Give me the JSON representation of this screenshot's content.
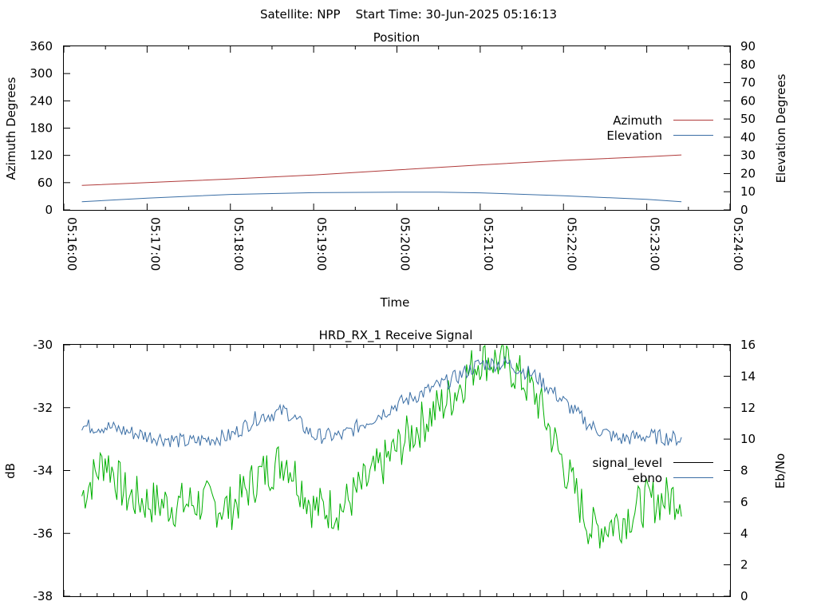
{
  "header": {
    "title": "Satellite: NPP    Start Time: 30-Jun-2025 05:16:13"
  },
  "chart_data": [
    {
      "type": "line",
      "title": "Position",
      "xlabel": "Time",
      "ylabel": "Azimuth Degrees",
      "y2label": "Elevation Degrees",
      "xlim": [
        "05:16:00",
        "05:24:00"
      ],
      "x_ticks": [
        "05:16:00",
        "05:17:00",
        "05:18:00",
        "05:19:00",
        "05:20:00",
        "05:21:00",
        "05:22:00",
        "05:23:00",
        "05:24:00"
      ],
      "ylim": [
        0,
        360
      ],
      "y_ticks": [
        "0",
        "60",
        "120",
        "180",
        "240",
        "300",
        "360"
      ],
      "y2lim": [
        0,
        90
      ],
      "y2_ticks": [
        "0",
        "10",
        "20",
        "30",
        "40",
        "50",
        "60",
        "70",
        "80",
        "90"
      ],
      "legend_position": "right",
      "colors": {
        "azimuth": "#b03a3a",
        "elevation": "#3a6ea5"
      },
      "series": [
        {
          "name": "Azimuth",
          "axis": "left",
          "x": [
            "05:16:13",
            "05:17:00",
            "05:18:00",
            "05:19:00",
            "05:20:00",
            "05:21:00",
            "05:22:00",
            "05:23:00",
            "05:23:25"
          ],
          "values": [
            54,
            60,
            68,
            77,
            88,
            99,
            109,
            117,
            121
          ]
        },
        {
          "name": "Elevation",
          "axis": "right",
          "x": [
            "05:16:13",
            "05:17:00",
            "05:18:00",
            "05:19:00",
            "05:20:00",
            "05:20:30",
            "05:21:00",
            "05:22:00",
            "05:23:00",
            "05:23:25"
          ],
          "values": [
            4.5,
            6.5,
            8.5,
            9.5,
            9.8,
            9.8,
            9.4,
            7.8,
            5.8,
            4.5
          ]
        }
      ]
    },
    {
      "type": "line",
      "title": "HRD_RX_1 Receive Signal",
      "ylabel": "dB",
      "y2label": "Eb/No",
      "xlim": [
        "05:16:00",
        "05:24:00"
      ],
      "ylim": [
        -38,
        -30
      ],
      "y_ticks": [
        "-30",
        "-32",
        "-34",
        "-36",
        "-38"
      ],
      "y2lim": [
        0,
        16
      ],
      "y2_ticks": [
        "0",
        "2",
        "4",
        "6",
        "8",
        "10",
        "12",
        "14",
        "16"
      ],
      "legend_position": "right",
      "colors": {
        "signal_level": "#000000",
        "ebno": "#3a6ea5",
        "third": "#00b000"
      },
      "series": [
        {
          "name": "signal_level",
          "axis": "left",
          "x": [],
          "values": []
        },
        {
          "name": "ebno",
          "axis": "left",
          "x": [
            "05:16:13",
            "05:16:30",
            "05:17:00",
            "05:17:30",
            "05:18:00",
            "05:18:20",
            "05:18:40",
            "05:19:00",
            "05:19:20",
            "05:19:40",
            "05:20:00",
            "05:20:20",
            "05:20:40",
            "05:21:00",
            "05:21:20",
            "05:21:40",
            "05:22:00",
            "05:22:20",
            "05:22:40",
            "05:23:00",
            "05:23:25"
          ],
          "values": [
            -32.6,
            -32.6,
            -32.9,
            -33.1,
            -32.9,
            -32.3,
            -32.1,
            -32.9,
            -32.9,
            -32.4,
            -31.9,
            -31.5,
            -31.1,
            -30.6,
            -30.6,
            -31.0,
            -31.8,
            -32.6,
            -33.0,
            -32.9,
            -33.0
          ]
        },
        {
          "axis": "left",
          "x": [
            "05:16:13",
            "05:16:30",
            "05:16:45",
            "05:17:00",
            "05:17:20",
            "05:17:40",
            "05:18:00",
            "05:18:20",
            "05:18:40",
            "05:19:00",
            "05:19:20",
            "05:19:40",
            "05:20:00",
            "05:20:20",
            "05:20:40",
            "05:21:00",
            "05:21:20",
            "05:21:40",
            "05:22:00",
            "05:22:20",
            "05:22:40",
            "05:23:00",
            "05:23:25"
          ],
          "values": [
            -34.8,
            -33.6,
            -34.8,
            -35.0,
            -35.1,
            -35.0,
            -35.2,
            -34.2,
            -33.6,
            -35.2,
            -35.2,
            -34.3,
            -33.3,
            -32.4,
            -31.6,
            -30.4,
            -30.6,
            -31.6,
            -33.8,
            -35.9,
            -35.6,
            -35.0,
            -34.8
          ]
        }
      ]
    }
  ]
}
